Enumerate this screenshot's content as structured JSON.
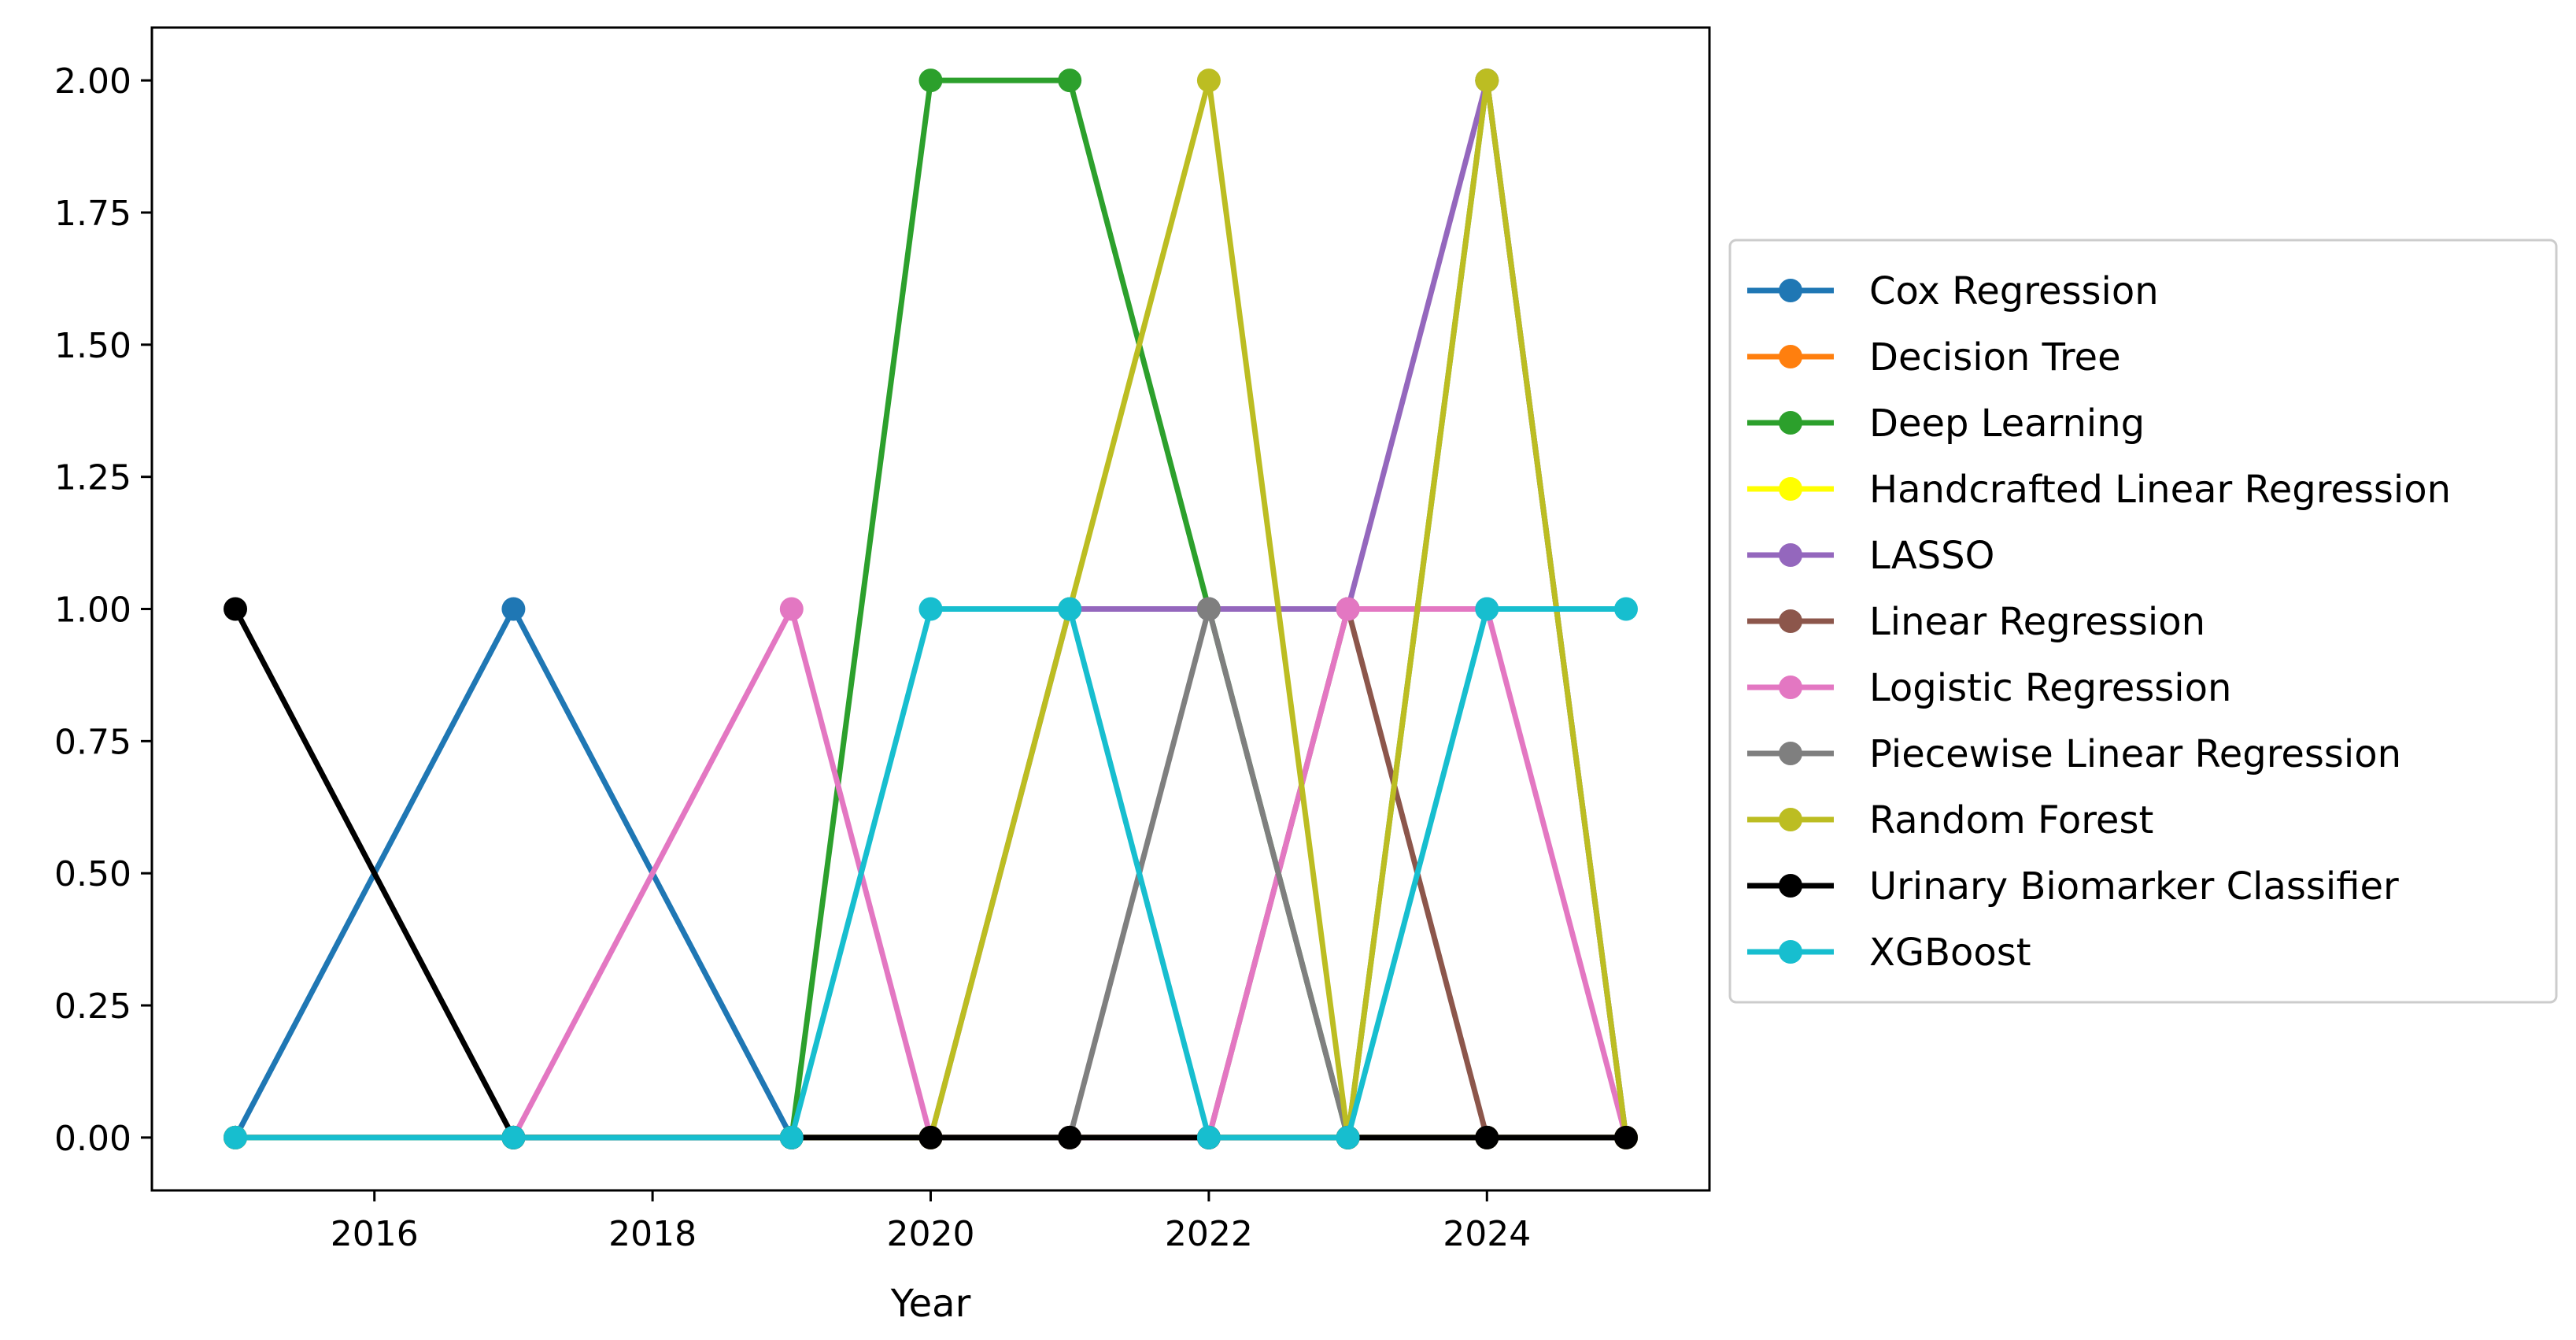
{
  "chart_data": {
    "type": "line",
    "title": "",
    "xlabel": "Year",
    "ylabel": "",
    "xlim": [
      2014.4,
      2025.6
    ],
    "ylim": [
      -0.1,
      2.1
    ],
    "x_ticks": [
      "2016",
      "2018",
      "2020",
      "2022",
      "2024"
    ],
    "y_ticks": [
      "0.00",
      "0.25",
      "0.50",
      "0.75",
      "1.00",
      "1.25",
      "1.50",
      "1.75",
      "2.00"
    ],
    "grid": false,
    "legend_position": "outside-right",
    "x": [
      2015,
      2017,
      2019,
      2020,
      2021,
      2022,
      2023,
      2024,
      2025
    ],
    "series": [
      {
        "name": "Cox Regression",
        "color": "#1f77b4",
        "values": [
          0,
          1,
          0,
          0,
          0,
          0,
          0,
          0,
          0
        ]
      },
      {
        "name": "Decision Tree",
        "color": "#ff7f0e",
        "values": [
          0,
          0,
          0,
          0,
          0,
          0,
          0,
          0,
          0
        ]
      },
      {
        "name": "Deep Learning",
        "color": "#2ca02c",
        "values": [
          0,
          0,
          0,
          2,
          2,
          1,
          0,
          2,
          0
        ]
      },
      {
        "name": "Handcrafted Linear Regression",
        "color": "#ffff00",
        "values": [
          0,
          0,
          0,
          0,
          0,
          0,
          0,
          0,
          0
        ]
      },
      {
        "name": "LASSO",
        "color": "#9467bd",
        "values": [
          0,
          0,
          0,
          0,
          1,
          1,
          1,
          2,
          0
        ]
      },
      {
        "name": "Linear Regression",
        "color": "#8c564b",
        "values": [
          0,
          0,
          0,
          0,
          0,
          0,
          1,
          0,
          0
        ]
      },
      {
        "name": "Logistic Regression",
        "color": "#e377c2",
        "values": [
          0,
          0,
          1,
          0,
          0,
          0,
          1,
          1,
          0
        ]
      },
      {
        "name": "Piecewise Linear Regression",
        "color": "#7f7f7f",
        "values": [
          0,
          0,
          0,
          0,
          0,
          1,
          0,
          0,
          0
        ]
      },
      {
        "name": "Random Forest",
        "color": "#bcbd22",
        "values": [
          0,
          0,
          0,
          0,
          1,
          2,
          0,
          2,
          0
        ]
      },
      {
        "name": "Urinary Biomarker Classifier",
        "color": "#000000",
        "values": [
          1,
          0,
          0,
          0,
          0,
          0,
          0,
          0,
          0
        ]
      },
      {
        "name": "XGBoost",
        "color": "#17becf",
        "values": [
          0,
          0,
          0,
          1,
          1,
          0,
          0,
          1,
          1
        ]
      }
    ]
  }
}
